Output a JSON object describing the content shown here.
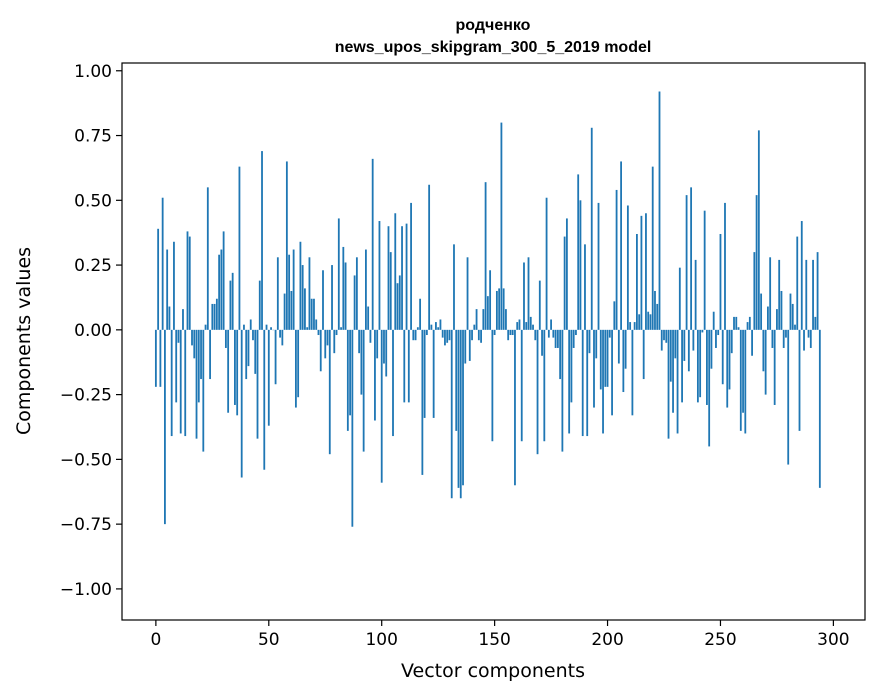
{
  "chart_data": {
    "type": "bar",
    "title": "родченко",
    "subtitle": "news_upos_skipgram_300_5_2019 model",
    "xlabel": "Vector components",
    "ylabel": "Components values",
    "xlim": [
      -15,
      314
    ],
    "ylim": [
      -1.12,
      1.03
    ],
    "xticks": [
      0,
      50,
      100,
      150,
      200,
      250,
      300
    ],
    "xtick_labels": [
      "0",
      "50",
      "100",
      "150",
      "200",
      "250",
      "300"
    ],
    "yticks": [
      1.0,
      0.75,
      0.5,
      0.25,
      0.0,
      -0.25,
      -0.5,
      -0.75,
      -1.0
    ],
    "ytick_labels": [
      "1.00",
      "0.75",
      "0.50",
      "0.25",
      "0.00",
      "−0.25",
      "−0.50",
      "−0.75",
      "−1.00"
    ],
    "grid": false,
    "bar_color": "#1f77b4",
    "values": [
      -0.22,
      0.39,
      -0.22,
      0.51,
      -0.75,
      0.31,
      0.09,
      -0.41,
      0.34,
      -0.28,
      -0.05,
      -0.4,
      0.08,
      -0.41,
      0.38,
      0.36,
      -0.06,
      -0.11,
      -0.42,
      -0.28,
      -0.19,
      -0.47,
      0.02,
      0.55,
      -0.19,
      0.1,
      0.1,
      0.12,
      0.29,
      0.31,
      0.38,
      -0.07,
      -0.32,
      0.19,
      0.22,
      -0.29,
      -0.33,
      0.63,
      -0.57,
      0.02,
      -0.19,
      -0.14,
      0.04,
      -0.04,
      -0.17,
      -0.42,
      0.19,
      0.69,
      -0.54,
      0.02,
      -0.37,
      0.01,
      0.0,
      -0.21,
      0.28,
      -0.03,
      -0.06,
      0.14,
      0.65,
      0.29,
      0.15,
      0.31,
      -0.3,
      -0.26,
      0.34,
      0.25,
      0.16,
      0.01,
      0.28,
      0.12,
      0.12,
      0.04,
      -0.02,
      -0.16,
      0.23,
      -0.11,
      -0.06,
      -0.48,
      0.25,
      -0.09,
      -0.02,
      0.43,
      0.01,
      0.32,
      0.26,
      -0.39,
      -0.33,
      -0.76,
      0.21,
      0.28,
      -0.09,
      -0.25,
      -0.47,
      0.31,
      0.09,
      -0.05,
      0.66,
      -0.35,
      -0.11,
      0.42,
      -0.59,
      -0.13,
      -0.18,
      0.4,
      0.3,
      -0.41,
      0.45,
      0.18,
      0.21,
      0.4,
      -0.28,
      0.41,
      -0.28,
      0.49,
      -0.04,
      -0.04,
      0.01,
      0.12,
      -0.56,
      -0.34,
      -0.02,
      0.56,
      0.02,
      -0.34,
      0.03,
      0.01,
      0.04,
      -0.03,
      -0.06,
      -0.05,
      -0.04,
      -0.65,
      0.33,
      -0.39,
      -0.61,
      -0.65,
      -0.6,
      -0.13,
      0.28,
      -0.12,
      -0.04,
      0.02,
      0.08,
      -0.04,
      -0.05,
      0.08,
      0.57,
      0.13,
      0.23,
      -0.43,
      -0.02,
      0.15,
      0.16,
      0.8,
      0.16,
      0.08,
      -0.04,
      -0.02,
      -0.02,
      -0.6,
      0.03,
      0.04,
      -0.43,
      0.26,
      0.03,
      0.28,
      0.05,
      0.02,
      -0.04,
      -0.48,
      0.19,
      -0.1,
      -0.43,
      0.51,
      -0.03,
      0.04,
      -0.03,
      -0.07,
      -0.07,
      -0.19,
      -0.47,
      0.36,
      0.43,
      -0.4,
      -0.28,
      -0.07,
      -0.02,
      0.6,
      0.5,
      -0.41,
      0.33,
      -0.41,
      -0.09,
      0.78,
      -0.3,
      -0.11,
      0.49,
      -0.23,
      -0.4,
      -0.22,
      -0.22,
      -0.03,
      -0.33,
      0.11,
      0.54,
      -0.13,
      0.65,
      -0.24,
      -0.15,
      0.48,
      0.03,
      -0.33,
      0.03,
      0.37,
      0.06,
      0.44,
      -0.19,
      0.45,
      0.07,
      0.06,
      0.63,
      0.15,
      0.1,
      0.92,
      -0.08,
      -0.04,
      -0.05,
      -0.42,
      -0.2,
      -0.32,
      -0.11,
      -0.4,
      0.24,
      -0.28,
      -0.12,
      0.52,
      -0.16,
      0.55,
      -0.08,
      0.27,
      -0.28,
      -0.26,
      -0.01,
      0.46,
      -0.29,
      -0.45,
      -0.15,
      0.07,
      -0.07,
      -0.02,
      0.37,
      -0.21,
      0.49,
      -0.3,
      -0.23,
      -0.09,
      0.05,
      0.05,
      0.01,
      -0.39,
      -0.32,
      -0.4,
      0.03,
      0.05,
      -0.1,
      0.3,
      0.52,
      0.77,
      0.14,
      -0.16,
      -0.25,
      0.09,
      0.28,
      -0.07,
      -0.29,
      0.08,
      0.27,
      0.15,
      -0.07,
      -0.03,
      -0.52,
      0.14,
      0.1,
      0.02,
      0.36,
      -0.39,
      0.42,
      -0.08,
      0.27,
      -0.03,
      -0.07,
      0.27,
      0.05,
      0.3,
      -0.61
    ]
  }
}
